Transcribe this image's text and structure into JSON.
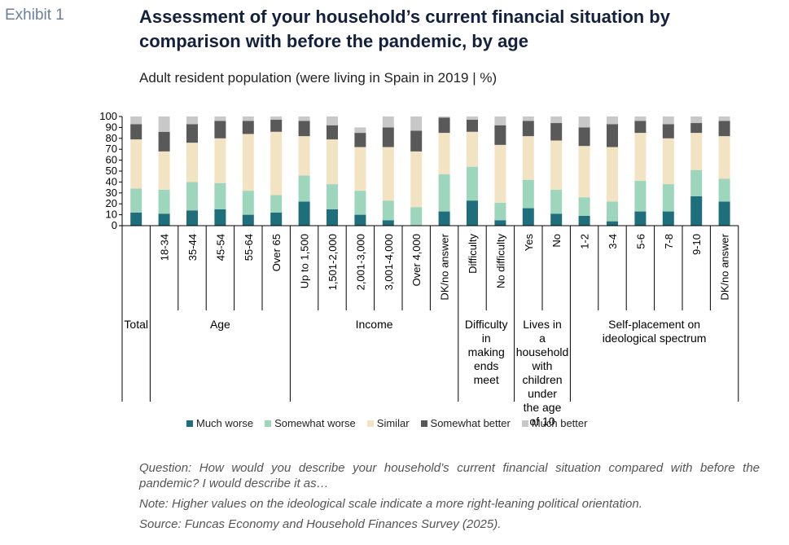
{
  "exhibit": "Exhibit 1",
  "title": "Assessment of your household’s current financial situation by comparison with before the pandemic, by age",
  "subtitle": "Adult resident population (were living in Spain in 2019 | %)",
  "chart_data": {
    "type": "bar",
    "stacked": true,
    "ylim": [
      0,
      100
    ],
    "yticks": [
      0,
      10,
      20,
      30,
      40,
      50,
      60,
      70,
      80,
      90,
      100
    ],
    "categories": [
      "Total",
      "18-34",
      "35-44",
      "45-54",
      "55-64",
      "Over 65",
      "Up to 1,500",
      "1,501-2,000",
      "2,001-3,000",
      "3,001-4,000",
      "Over 4,000",
      "DK/no answer",
      "Difficulty",
      "No difficulty",
      "Yes",
      "No",
      "1-2",
      "3-4",
      "5-6",
      "7-8",
      "9-10",
      "DK/no answer"
    ],
    "groups": [
      {
        "label": "Total",
        "start": 0,
        "end": 0
      },
      {
        "label": "Age",
        "start": 1,
        "end": 5
      },
      {
        "label": "Income",
        "start": 6,
        "end": 11
      },
      {
        "label": "Difficulty in making ends meet",
        "start": 12,
        "end": 13
      },
      {
        "label": "Lives in a household with children under the age of 10",
        "start": 14,
        "end": 15
      },
      {
        "label": "Self-placement on ideological spectrum",
        "start": 16,
        "end": 21
      }
    ],
    "legend_position": "bottom",
    "series": [
      {
        "name": "Much worse",
        "color": "#1e6e7c",
        "values": [
          12,
          11,
          14,
          15,
          10,
          12,
          22,
          15,
          10,
          5,
          0,
          13,
          23,
          5,
          16,
          11,
          9,
          4,
          13,
          13,
          27,
          22
        ]
      },
      {
        "name": "Somewhat worse",
        "color": "#9dd5bd",
        "values": [
          22,
          22,
          26,
          24,
          22,
          16,
          24,
          23,
          22,
          18,
          17,
          34,
          31,
          16,
          26,
          22,
          17,
          18,
          28,
          25,
          24,
          21
        ]
      },
      {
        "name": "Similar",
        "color": "#f2e3c2",
        "values": [
          45,
          35,
          36,
          41,
          52,
          58,
          36,
          41,
          40,
          49,
          51,
          38,
          32,
          53,
          40,
          45,
          47,
          50,
          44,
          42,
          34,
          39
        ]
      },
      {
        "name": "Somewhat better",
        "color": "#595959",
        "values": [
          14,
          18,
          17,
          16,
          12,
          11,
          14,
          13,
          13,
          18,
          19,
          14,
          11,
          18,
          14,
          16,
          17,
          21,
          11,
          13,
          9,
          14
        ]
      },
      {
        "name": "Much better",
        "color": "#c8c8c8",
        "values": [
          7,
          14,
          7,
          4,
          4,
          3,
          4,
          8,
          5,
          10,
          13,
          1,
          3,
          8,
          4,
          6,
          10,
          7,
          4,
          7,
          6,
          4
        ]
      }
    ]
  },
  "notes": {
    "question": "Question: How would you describe your household’s current financial situation compared with before the pandemic? I would describe it as…",
    "note": "Note: Higher values on the ideological scale indicate a more right-leaning political orientation.",
    "source": "Source: Funcas Economy and Household Finances Survey (2025)."
  }
}
